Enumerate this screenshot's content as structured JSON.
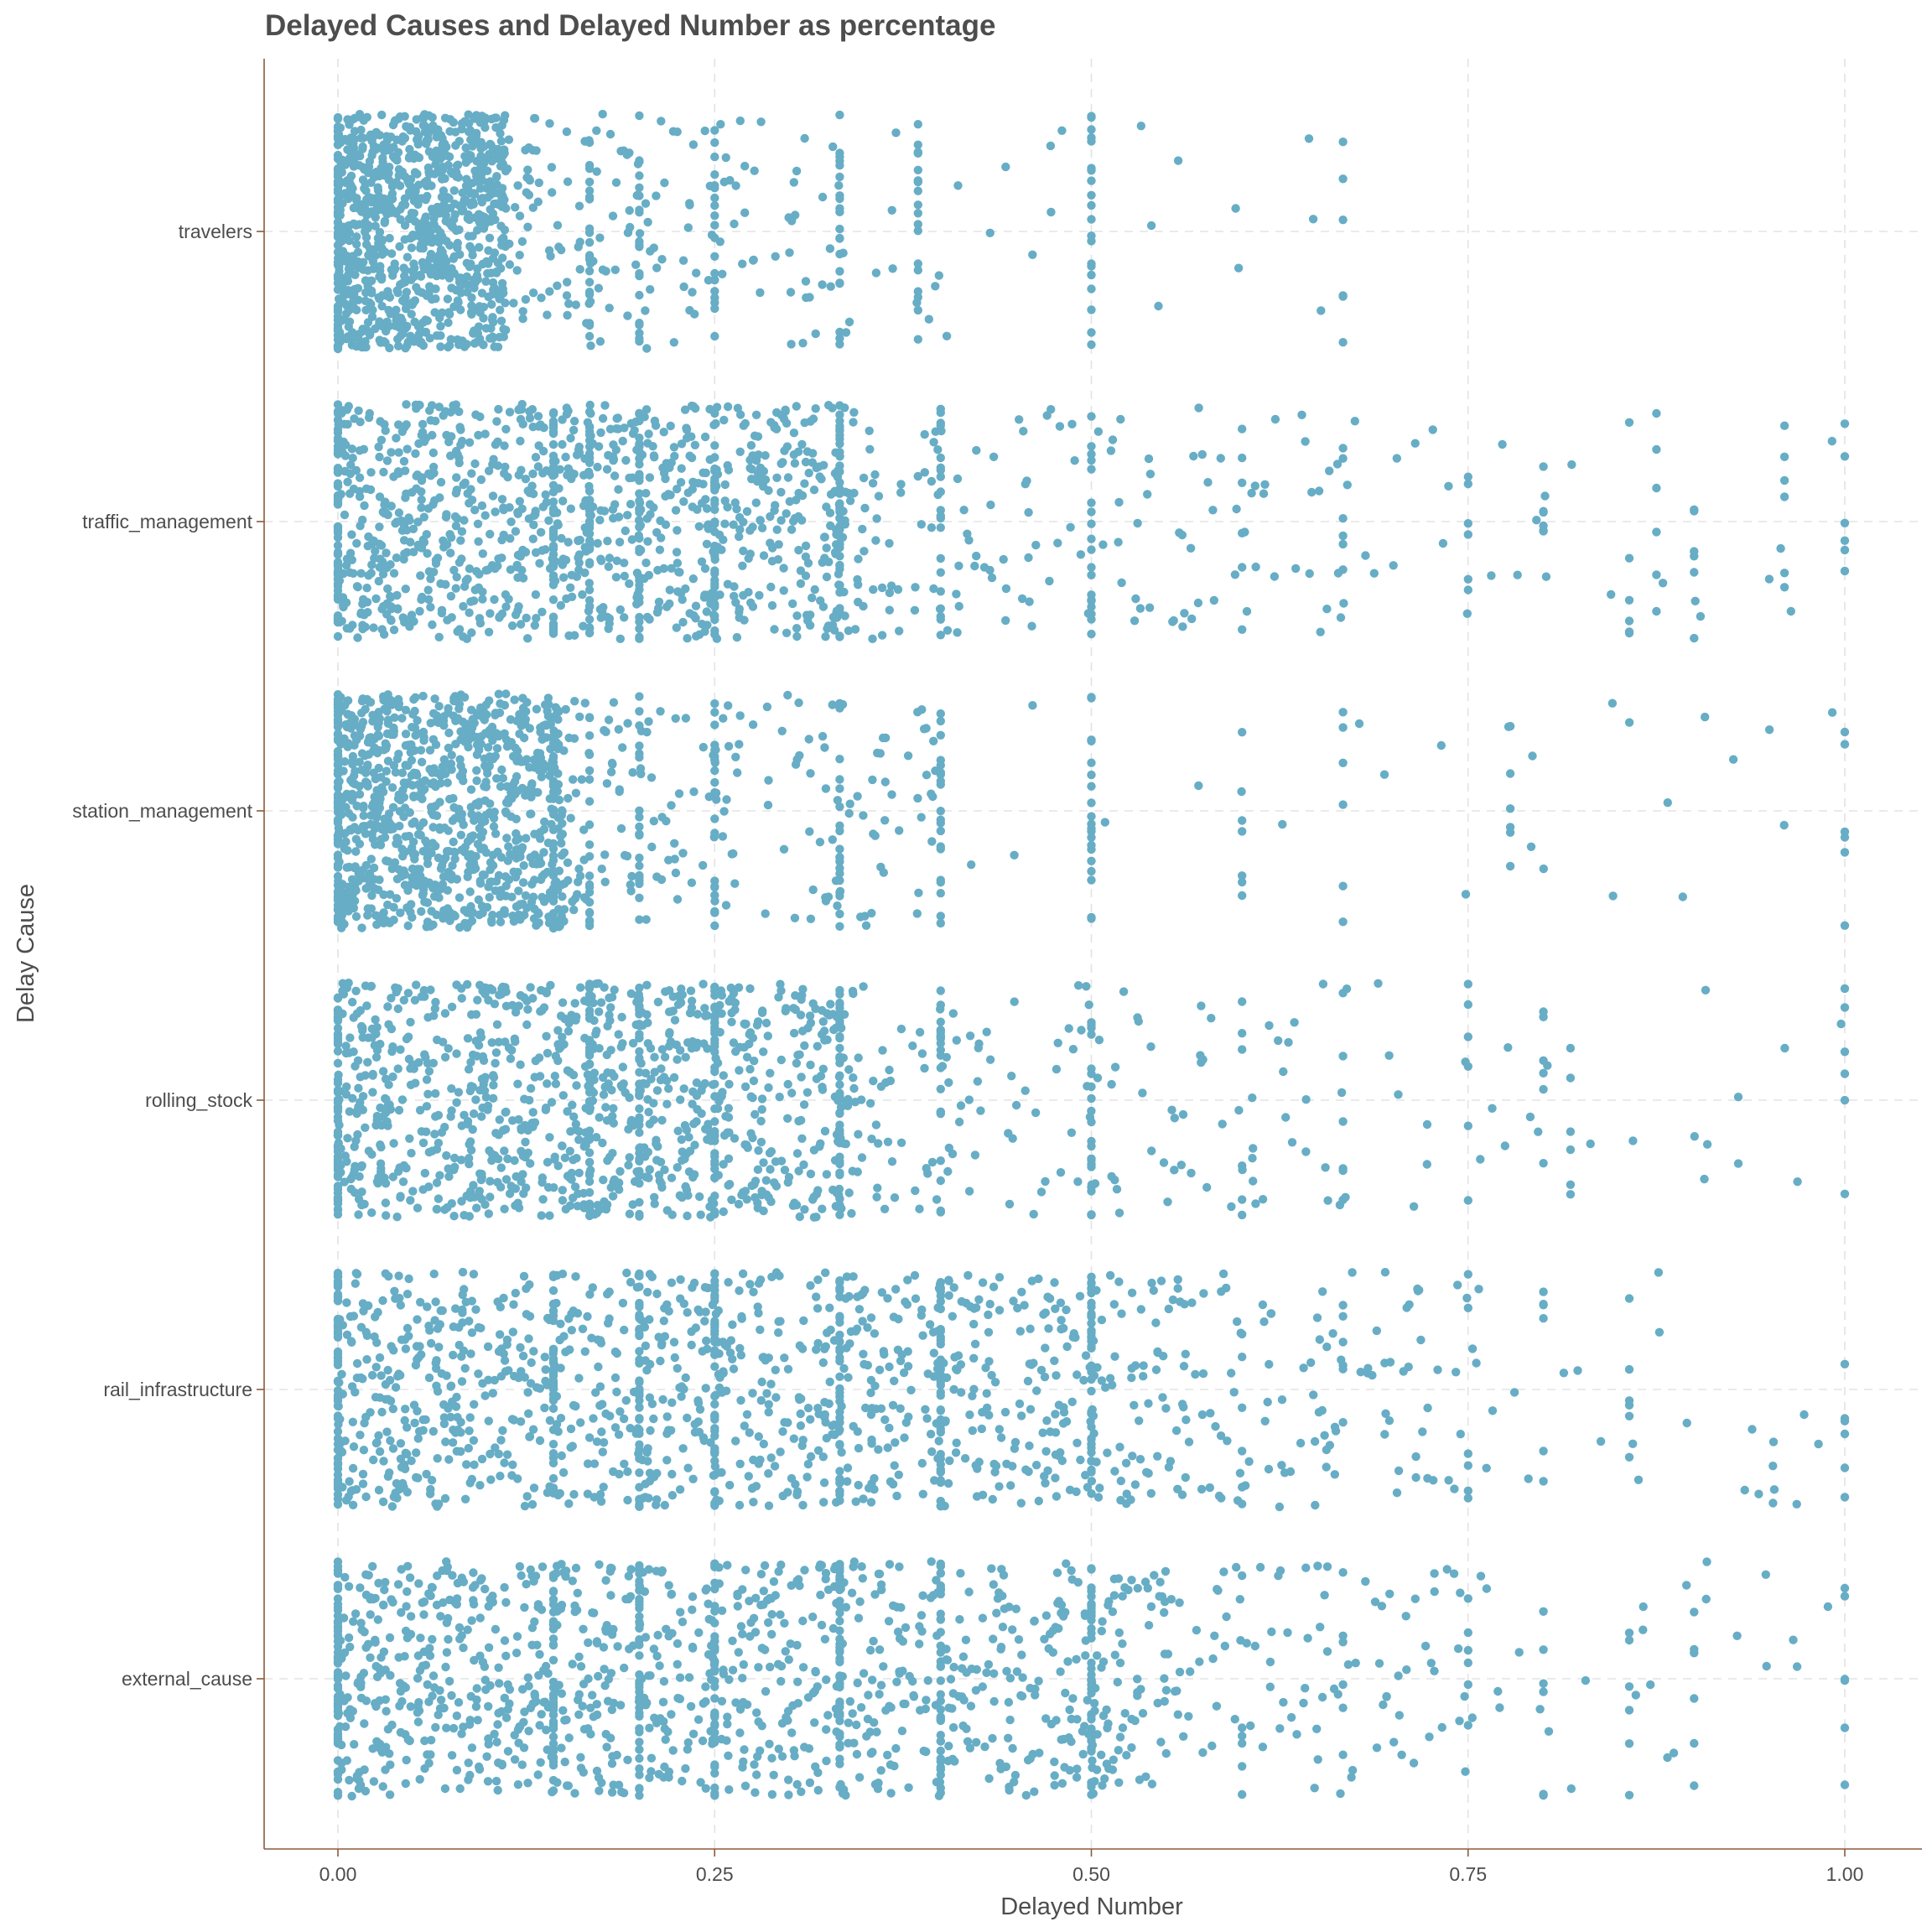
{
  "chart_data": {
    "type": "scatter",
    "jitter": "vertical strip (jittered points per category)",
    "title": "Delayed Causes and Delayed Number as percentage",
    "xlabel": "Delayed Number",
    "ylabel": "Delay Cause",
    "xlim": [
      -0.05,
      1.05
    ],
    "x_ticks": [
      0.0,
      0.25,
      0.5,
      0.75,
      1.0
    ],
    "x_tick_labels": [
      "0.00",
      "0.25",
      "0.50",
      "0.75",
      "1.00"
    ],
    "categories": [
      "travelers",
      "traffic_management",
      "station_management",
      "rolling_stock",
      "rail_infrastructure",
      "external_cause"
    ],
    "grid": "dashed major gridlines on both axes",
    "point_color": "#67adc5",
    "series": [
      {
        "category": "travelers",
        "dense_range": [
          0.0,
          0.11
        ],
        "sparse_range": [
          0.11,
          0.34
        ],
        "max_value": 0.67,
        "isolated_values": [
          0.0,
          0.167,
          0.2,
          0.25,
          0.333,
          0.385,
          0.5,
          0.667
        ]
      },
      {
        "category": "traffic_management",
        "dense_range": [
          0.0,
          0.33
        ],
        "sparse_range": [
          0.33,
          0.67
        ],
        "max_value": 1.0,
        "isolated_values": [
          0.0,
          0.143,
          0.167,
          0.2,
          0.25,
          0.333,
          0.4,
          0.5,
          0.6,
          0.667,
          0.75,
          0.8,
          0.857,
          0.875,
          0.9,
          0.96,
          1.0
        ]
      },
      {
        "category": "station_management",
        "dense_range": [
          0.0,
          0.15
        ],
        "sparse_range": [
          0.15,
          0.4
        ],
        "max_value": 1.0,
        "isolated_values": [
          0.0,
          0.143,
          0.167,
          0.2,
          0.25,
          0.333,
          0.4,
          0.5,
          0.6,
          0.667,
          0.778,
          1.0
        ]
      },
      {
        "category": "rolling_stock",
        "dense_range": [
          0.0,
          0.33
        ],
        "sparse_range": [
          0.33,
          0.67
        ],
        "max_value": 1.0,
        "isolated_values": [
          0.0,
          0.167,
          0.2,
          0.25,
          0.333,
          0.4,
          0.5,
          0.6,
          0.667,
          0.75,
          0.8,
          0.818,
          1.0
        ]
      },
      {
        "category": "rail_infrastructure",
        "dense_range": [
          0.0,
          0.5
        ],
        "sparse_range": [
          0.5,
          0.75
        ],
        "max_value": 1.0,
        "isolated_values": [
          0.0,
          0.143,
          0.2,
          0.25,
          0.333,
          0.4,
          0.5,
          0.6,
          0.667,
          0.75,
          0.8,
          0.857,
          1.0
        ]
      },
      {
        "category": "external_cause",
        "dense_range": [
          0.0,
          0.5
        ],
        "sparse_range": [
          0.5,
          0.75
        ],
        "max_value": 1.0,
        "isolated_values": [
          0.0,
          0.143,
          0.2,
          0.25,
          0.333,
          0.4,
          0.5,
          0.6,
          0.667,
          0.75,
          0.8,
          0.857,
          0.9,
          1.0
        ]
      }
    ]
  }
}
